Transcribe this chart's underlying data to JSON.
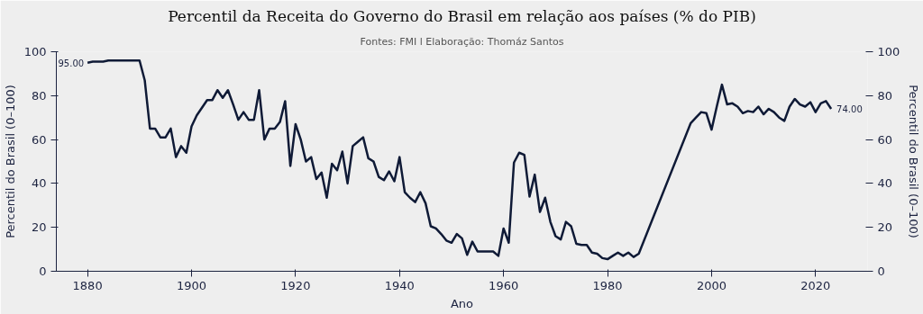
{
  "chart_data": {
    "type": "line",
    "title": "Percentil da Receita do Governo do Brasil em relação aos países (% do PIB)",
    "annotations": [
      "Fontes: FMI l Elaboração: Thomáz Santos",
      {
        "text": "95.00",
        "x": 1880,
        "y": 95
      },
      {
        "text": "74.00",
        "x": 2023,
        "y": 74
      }
    ],
    "xlabel": "Ano",
    "ylabel": "Percentil do Brasil (0–100)",
    "y2label": "Percentil do Brasil (0–100)",
    "x": [
      1880,
      1881,
      1882,
      1883,
      1884,
      1885,
      1886,
      1887,
      1888,
      1889,
      1890,
      1891,
      1892,
      1893,
      1894,
      1895,
      1896,
      1897,
      1898,
      1899,
      1900,
      1901,
      1902,
      1903,
      1904,
      1905,
      1906,
      1907,
      1908,
      1909,
      1910,
      1911,
      1912,
      1913,
      1914,
      1915,
      1916,
      1917,
      1918,
      1919,
      1920,
      1921,
      1922,
      1923,
      1924,
      1925,
      1926,
      1927,
      1928,
      1929,
      1930,
      1931,
      1932,
      1933,
      1934,
      1935,
      1936,
      1937,
      1938,
      1939,
      1940,
      1941,
      1942,
      1943,
      1944,
      1945,
      1946,
      1947,
      1948,
      1949,
      1950,
      1951,
      1952,
      1953,
      1954,
      1955,
      1956,
      1957,
      1958,
      1959,
      1960,
      1961,
      1962,
      1963,
      1964,
      1965,
      1966,
      1967,
      1968,
      1969,
      1970,
      1971,
      1972,
      1973,
      1974,
      1975,
      1976,
      1977,
      1978,
      1979,
      1980,
      1981,
      1982,
      1983,
      1984,
      1985,
      1986,
      1996,
      1997,
      1998,
      1999,
      2000,
      2001,
      2002,
      2003,
      2004,
      2005,
      2006,
      2007,
      2008,
      2009,
      2010,
      2011,
      2012,
      2013,
      2014,
      2015,
      2016,
      2017,
      2018,
      2019,
      2020,
      2021,
      2022,
      2023
    ],
    "series": [
      {
        "color": "#0f1a36",
        "values": [
          95,
          95.5,
          95.5,
          95.5,
          96,
          96,
          96,
          96,
          96,
          96,
          96,
          87,
          65,
          65,
          61,
          61,
          65,
          52,
          57,
          54,
          66,
          71,
          74.5,
          78,
          78,
          82.5,
          79,
          82.5,
          76,
          69,
          72.5,
          69,
          69,
          82.5,
          60,
          65,
          65,
          68,
          77.5,
          48,
          67,
          60,
          50,
          52,
          42,
          45,
          33.5,
          49,
          46,
          54.5,
          40,
          57,
          59,
          61,
          51.5,
          50,
          43,
          41.5,
          45.5,
          41,
          52,
          36,
          33.5,
          31.5,
          36,
          31,
          20.5,
          19.5,
          17,
          14,
          13,
          17,
          15,
          7.5,
          13.5,
          9,
          9,
          9,
          9,
          7,
          19.5,
          13,
          49.5,
          54,
          53,
          34,
          44,
          27,
          33.5,
          22.5,
          16,
          14.5,
          22.5,
          20.5,
          12.5,
          12,
          12,
          8.5,
          8,
          6,
          5.5,
          7,
          8.5,
          7,
          8.5,
          6.5,
          8,
          67.5,
          70,
          72.5,
          72,
          64.5,
          75,
          85,
          76,
          76.5,
          75,
          72,
          73,
          72.5,
          75,
          71.5,
          74,
          72.5,
          70,
          68.5,
          75,
          78.5,
          76,
          75,
          77,
          72.5,
          76.5,
          77.5,
          74
        ]
      }
    ],
    "xlim": [
      1874,
      2030
    ],
    "xticks": [
      1880,
      1900,
      1920,
      1940,
      1960,
      1980,
      2000,
      2020
    ],
    "ylim": [
      0,
      100
    ],
    "yticks": [
      0,
      20,
      40,
      60,
      80,
      100
    ],
    "y2lim": [
      0,
      100
    ],
    "y2ticks": [
      0,
      20,
      40,
      60,
      80,
      100
    ],
    "grid": false,
    "line_style": "solid",
    "marker": "none"
  }
}
